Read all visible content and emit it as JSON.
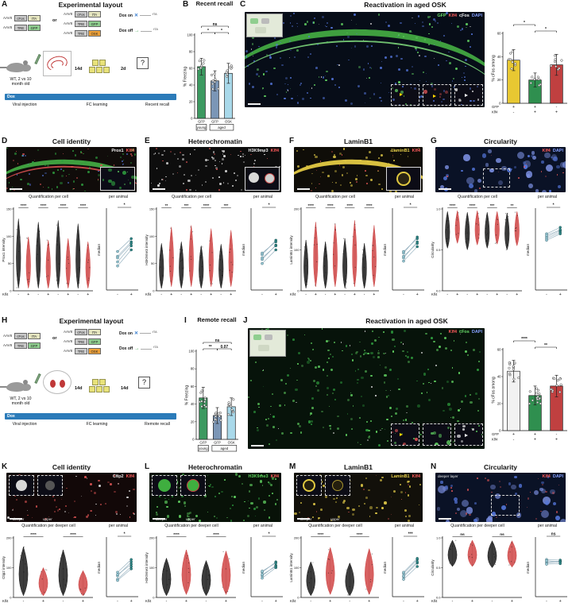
{
  "panelA": {
    "letter": "A",
    "title": "Experimental layout",
    "aav": "AAV8",
    "or": "or",
    "left": [
      {
        "b1": "cFos",
        "c1": "#c9c9c9",
        "b2": "tTA",
        "c2": "#e6e6c0"
      },
      {
        "b1": "TRE",
        "c1": "#c9c9c9",
        "b2": "GFP",
        "c2": "#8fce8f"
      }
    ],
    "mid": [
      {
        "b1": "cFos",
        "c1": "#c9c9c9",
        "b2": "tTA",
        "c2": "#e6e6c0"
      },
      {
        "b1": "TRE",
        "c1": "#c9c9c9",
        "b2": "GFP",
        "c2": "#8fce8f"
      },
      {
        "b1": "TRE",
        "c1": "#c9c9c9",
        "b2": "OSK",
        "c2": "#efa23a"
      }
    ],
    "dox_on": "Dox on",
    "dox_off": "Dox off",
    "tta": "tTA",
    "mouse1": "WT, 2 vs 10",
    "mouse2": "month old",
    "dox": "Dox",
    "i1": "14d",
    "i2": "2d",
    "q": "?",
    "step1": "Viral injection",
    "step2": "FC learning",
    "step3": "Recent recall"
  },
  "panelB": {
    "letter": "B",
    "title": "Recent recall",
    "chart": {
      "ylabel": "% Freezing",
      "ymax": 100,
      "ticks": [
        0,
        20,
        40,
        60,
        80,
        100
      ],
      "values": [
        62,
        45,
        54
      ],
      "errors": [
        10,
        12,
        12
      ],
      "dots": [
        7,
        8,
        8
      ],
      "colors": [
        "#3c9960",
        "#7b96b6",
        "#a9d9ea"
      ],
      "sig": [
        {
          "label": "ns",
          "from": 0,
          "to": 2,
          "row": 1
        },
        {
          "label": "*",
          "from": 0,
          "to": 1,
          "row": 0
        },
        {
          "label": "*",
          "from": 1,
          "to": 2,
          "row": 0
        }
      ],
      "xlabels": [
        "GFP",
        "GFP",
        "OSK"
      ],
      "groups": [
        {
          "label": "young",
          "from": 0,
          "to": 0
        },
        {
          "label": "aged",
          "from": 1,
          "to": 2
        }
      ]
    }
  },
  "panelC": {
    "letter": "C",
    "title": "Reactivation in aged OSK",
    "labels": [
      {
        "t": "GFP",
        "c": "#6ae06a"
      },
      {
        "t": "Klf4",
        "c": "#ff5c5c"
      },
      {
        "t": "cFos",
        "c": "#f0f0f0"
      },
      {
        "t": "DAPI",
        "c": "#86a0ff"
      }
    ],
    "chart": {
      "ylabel": "% cFos among",
      "ymax": 60,
      "ticks": [
        0,
        20,
        40,
        60
      ],
      "values": [
        37,
        20,
        33
      ],
      "errors": [
        9,
        6,
        9
      ],
      "dots": [
        8,
        8,
        8
      ],
      "colors": [
        "#e8c832",
        "#2f8f4f",
        "#c04040"
      ],
      "sig": [
        {
          "label": "*",
          "from": 0,
          "to": 1,
          "row": 1
        },
        {
          "label": "*",
          "from": 1,
          "to": 2,
          "row": 0
        }
      ],
      "xrows": [
        {
          "name": "GFP",
          "vals": [
            "+",
            "+",
            "-"
          ]
        },
        {
          "name": "Klf4",
          "vals": [
            "-",
            "+",
            "+"
          ]
        }
      ]
    }
  },
  "panelD": {
    "letter": "D",
    "title": "Cell identity",
    "labels": [
      {
        "t": "Prox1",
        "c": "#f0f0f0"
      },
      {
        "t": "Klf4",
        "c": "#ff5c5c"
      }
    ],
    "quant": "Quantification per cell",
    "per_animal": "per animal",
    "violin": {
      "ylabel": "Prox1 intensity",
      "ticks": [
        "0",
        "50",
        "100",
        "150"
      ],
      "sig": [
        "****",
        "****",
        "****",
        "****"
      ],
      "row_name": "Klf4",
      "row_vals": [
        "-",
        "+",
        "-",
        "+",
        "-",
        "+",
        "-",
        "+"
      ],
      "violins": [
        {
          "c": "#1a1a1a",
          "lo": 0.03,
          "hi": 0.88
        },
        {
          "c": "#d04545",
          "lo": 0.03,
          "hi": 0.66
        },
        {
          "c": "#1a1a1a",
          "lo": 0.03,
          "hi": 0.84
        },
        {
          "c": "#d04545",
          "lo": 0.03,
          "hi": 0.62
        },
        {
          "c": "#1a1a1a",
          "lo": 0.03,
          "hi": 0.86
        },
        {
          "c": "#d04545",
          "lo": 0.03,
          "hi": 0.64
        },
        {
          "c": "#1a1a1a",
          "lo": 0.03,
          "hi": 0.82
        },
        {
          "c": "#d04545",
          "lo": 0.03,
          "hi": 0.6
        }
      ]
    },
    "median": {
      "ylabel": "median",
      "sig": "*",
      "xvals": [
        "-",
        "+"
      ],
      "pairs": [
        [
          0.35,
          0.55
        ],
        [
          0.42,
          0.6
        ],
        [
          0.48,
          0.64
        ],
        [
          0.3,
          0.5
        ],
        [
          0.4,
          0.58
        ]
      ]
    }
  },
  "panelE": {
    "letter": "E",
    "title": "Heterochromatin",
    "labels": [
      {
        "t": "H3K9me3",
        "c": "#e8e8e8"
      },
      {
        "t": "Klf4",
        "c": "#ff5c5c"
      }
    ],
    "quant": "Quantification per cell",
    "per_animal": "per animal",
    "violin": {
      "ylabel": "H3K9me3 intensity",
      "ticks": [
        "0",
        "50",
        "100",
        "150"
      ],
      "sig": [
        "**",
        "***",
        "****",
        "***"
      ],
      "row_name": "Klf4",
      "row_vals": [
        "-",
        "+",
        "-",
        "+",
        "-",
        "+",
        "-",
        "+"
      ],
      "violins": [
        {
          "c": "#1a1a1a",
          "lo": 0.03,
          "hi": 0.58
        },
        {
          "c": "#d04545",
          "lo": 0.05,
          "hi": 0.78
        },
        {
          "c": "#1a1a1a",
          "lo": 0.03,
          "hi": 0.6
        },
        {
          "c": "#d04545",
          "lo": 0.05,
          "hi": 0.8
        },
        {
          "c": "#1a1a1a",
          "lo": 0.03,
          "hi": 0.55
        },
        {
          "c": "#d04545",
          "lo": 0.05,
          "hi": 0.76
        },
        {
          "c": "#1a1a1a",
          "lo": 0.03,
          "hi": 0.57
        },
        {
          "c": "#d04545",
          "lo": 0.05,
          "hi": 0.74
        }
      ]
    },
    "median": {
      "ylabel": "median",
      "sig": "*",
      "xvals": [
        "-",
        "+"
      ],
      "pairs": [
        [
          0.38,
          0.56
        ],
        [
          0.44,
          0.62
        ],
        [
          0.4,
          0.55
        ],
        [
          0.33,
          0.5
        ],
        [
          0.46,
          0.6
        ]
      ]
    }
  },
  "panelF": {
    "letter": "F",
    "title": "LaminB1",
    "labels": [
      {
        "t": "LaminB1",
        "c": "#e8d04a"
      },
      {
        "t": "Klf4",
        "c": "#ff5c5c"
      }
    ],
    "quant": "Quantification per cell",
    "per_animal": "per animal",
    "violin": {
      "ylabel": "LaminB1 intensity",
      "ticks": [
        "0",
        "100",
        "200"
      ],
      "sig": [
        "****",
        "****",
        "****",
        "****"
      ],
      "row_name": "Klf4",
      "row_vals": [
        "-",
        "+",
        "-",
        "+",
        "-",
        "+",
        "-",
        "+"
      ],
      "violins": [
        {
          "c": "#1a1a1a",
          "lo": 0.03,
          "hi": 0.62
        },
        {
          "c": "#d04545",
          "lo": 0.05,
          "hi": 0.84
        },
        {
          "c": "#1a1a1a",
          "lo": 0.03,
          "hi": 0.6
        },
        {
          "c": "#d04545",
          "lo": 0.05,
          "hi": 0.82
        },
        {
          "c": "#1a1a1a",
          "lo": 0.03,
          "hi": 0.64
        },
        {
          "c": "#d04545",
          "lo": 0.05,
          "hi": 0.86
        },
        {
          "c": "#1a1a1a",
          "lo": 0.03,
          "hi": 0.58
        },
        {
          "c": "#d04545",
          "lo": 0.05,
          "hi": 0.8
        }
      ]
    },
    "median": {
      "ylabel": "median",
      "sig": "*",
      "xvals": [
        "-",
        "+"
      ],
      "pairs": [
        [
          0.4,
          0.6
        ],
        [
          0.46,
          0.66
        ],
        [
          0.42,
          0.58
        ],
        [
          0.36,
          0.54
        ],
        [
          0.48,
          0.64
        ]
      ]
    }
  },
  "panelG": {
    "letter": "G",
    "title": "Circularity",
    "labels": [
      {
        "t": "Klf4",
        "c": "#ff5c5c"
      },
      {
        "t": "DAPI",
        "c": "#86a0ff"
      }
    ],
    "quant": "Quantification per cell",
    "per_animal": "per animal",
    "violin": {
      "ylabel": "Circularity",
      "ticks": [
        "0.0",
        "0.5",
        "1.0"
      ],
      "sig": [
        "****",
        "****",
        "***",
        "**"
      ],
      "row_name": "Klf4",
      "row_vals": [
        "-",
        "+",
        "-",
        "+",
        "-",
        "+",
        "-",
        "+"
      ],
      "violins": [
        {
          "c": "#1a1a1a",
          "lo": 0.52,
          "hi": 0.97
        },
        {
          "c": "#d04545",
          "lo": 0.58,
          "hi": 0.98
        },
        {
          "c": "#1a1a1a",
          "lo": 0.5,
          "hi": 0.96
        },
        {
          "c": "#d04545",
          "lo": 0.56,
          "hi": 0.98
        },
        {
          "c": "#1a1a1a",
          "lo": 0.52,
          "hi": 0.96
        },
        {
          "c": "#d04545",
          "lo": 0.57,
          "hi": 0.97
        },
        {
          "c": "#1a1a1a",
          "lo": 0.5,
          "hi": 0.95
        },
        {
          "c": "#d04545",
          "lo": 0.55,
          "hi": 0.97
        }
      ]
    },
    "median": {
      "ylabel": "median",
      "sig": "*",
      "xvals": [
        "-",
        "+"
      ],
      "pairs": [
        [
          0.66,
          0.74
        ],
        [
          0.7,
          0.78
        ],
        [
          0.64,
          0.72
        ],
        [
          0.68,
          0.75
        ],
        [
          0.62,
          0.7
        ]
      ]
    }
  },
  "panelH": {
    "letter": "H",
    "title": "Experimental layout",
    "aav": "AAV8",
    "or": "or",
    "left": [
      {
        "b1": "cFos",
        "c1": "#c9c9c9",
        "b2": "tTA",
        "c2": "#e6e6c0"
      },
      {
        "b1": "TRE",
        "c1": "#c9c9c9",
        "b2": "GFP",
        "c2": "#8fce8f"
      }
    ],
    "mid": [
      {
        "b1": "cFos",
        "c1": "#c9c9c9",
        "b2": "tTA",
        "c2": "#e6e6c0"
      },
      {
        "b1": "TRE",
        "c1": "#c9c9c9",
        "b2": "GFP",
        "c2": "#8fce8f"
      },
      {
        "b1": "TRE",
        "c1": "#c9c9c9",
        "b2": "OSK",
        "c2": "#efa23a"
      }
    ],
    "dox_on": "Dox on",
    "dox_off": "Dox off",
    "tta": "tTA",
    "mouse1": "WT, 2 vs 10",
    "mouse2": "month old",
    "dox": "Dox",
    "i1": "14d",
    "i2": "14d",
    "q": "?",
    "step1": "Viral injection",
    "step2": "FC learning",
    "step3": "Remote recall"
  },
  "panelI": {
    "letter": "I",
    "title": "Remote recall",
    "chart": {
      "ylabel": "% Freezing",
      "ymax": 100,
      "ticks": [
        0,
        20,
        40,
        60,
        80,
        100
      ],
      "values": [
        47,
        27,
        37
      ],
      "errors": [
        12,
        9,
        10
      ],
      "dots": [
        10,
        10,
        9
      ],
      "colors": [
        "#3c9960",
        "#7b96b6",
        "#a9d9ea"
      ],
      "sig": [
        {
          "label": "ns",
          "from": 0,
          "to": 2,
          "row": 1
        },
        {
          "label": "**",
          "from": 0,
          "to": 1,
          "row": 0
        },
        {
          "label": "0.07",
          "from": 1,
          "to": 2,
          "row": 0
        }
      ],
      "xlabels": [
        "GFP",
        "GFP",
        "OSK"
      ],
      "groups": [
        {
          "label": "young",
          "from": 0,
          "to": 0
        },
        {
          "label": "aged",
          "from": 1,
          "to": 2
        }
      ]
    }
  },
  "panelJ": {
    "letter": "J",
    "title": "Reactivation in aged OSK",
    "labels": [
      {
        "t": "Klf4",
        "c": "#ff5c5c"
      },
      {
        "t": "cFos",
        "c": "#6ae06a"
      },
      {
        "t": "DAPI",
        "c": "#86a0ff"
      }
    ],
    "chart": {
      "ylabel": "% cFos among",
      "ymax": 60,
      "ticks": [
        0,
        20,
        40,
        60
      ],
      "values": [
        44,
        26,
        33
      ],
      "errors": [
        8,
        7,
        8
      ],
      "dots": [
        14,
        14,
        12
      ],
      "colors": [
        "#f2f2f2",
        "#2f8f4f",
        "#c04040"
      ],
      "sig": [
        {
          "label": "****",
          "from": 0,
          "to": 1,
          "row": 1
        },
        {
          "label": "**",
          "from": 1,
          "to": 2,
          "row": 0
        }
      ],
      "xrows": [
        {
          "name": "GFP",
          "vals": [
            "+",
            "+",
            "-"
          ]
        },
        {
          "name": "Klf4",
          "vals": [
            "-",
            "+",
            "+"
          ]
        }
      ]
    }
  },
  "panelK": {
    "letter": "K",
    "title": "Cell identity",
    "labels": [
      {
        "t": "Ctip2",
        "c": "#e0e0e0"
      },
      {
        "t": "Klf4",
        "c": "#ff5c5c"
      }
    ],
    "caps": [
      "deeper",
      "upper"
    ],
    "quant": "Quantification per deeper cell",
    "per_animal": "per animal",
    "violin": {
      "ylabel": "Ctip2 intensity",
      "ticks": [
        "0",
        "100",
        "200"
      ],
      "sig": [
        "****",
        "****"
      ],
      "row_name": "Klf4",
      "row_vals": [
        "-",
        "+",
        "-",
        "+"
      ],
      "violins": [
        {
          "c": "#1a1a1a",
          "lo": 0.03,
          "hi": 0.85
        },
        {
          "c": "#d04545",
          "lo": 0.03,
          "hi": 0.5
        },
        {
          "c": "#1a1a1a",
          "lo": 0.03,
          "hi": 0.8
        },
        {
          "c": "#d04545",
          "lo": 0.03,
          "hi": 0.45
        }
      ]
    },
    "median": {
      "ylabel": "median",
      "sig": "*",
      "xvals": [
        "-",
        "+"
      ],
      "pairs": [
        [
          0.3,
          0.52
        ],
        [
          0.36,
          0.6
        ],
        [
          0.42,
          0.64
        ],
        [
          0.28,
          0.48
        ],
        [
          0.38,
          0.56
        ]
      ]
    }
  },
  "panelL": {
    "letter": "L",
    "title": "Heterochromatin",
    "labels": [
      {
        "t": "H3K9me3",
        "c": "#5ad05a"
      },
      {
        "t": "Klf4",
        "c": "#ff5c5c"
      }
    ],
    "caps": [
      "deeper",
      "upper"
    ],
    "quant": "Quantification per deeper cell",
    "per_animal": "per animal",
    "violin": {
      "ylabel": "H3K9me3 intensity",
      "ticks": [
        "0",
        "100",
        "200"
      ],
      "sig": [
        "****",
        "****"
      ],
      "row_name": "Klf4",
      "row_vals": [
        "-",
        "+",
        "-",
        "+"
      ],
      "violins": [
        {
          "c": "#1a1a1a",
          "lo": 0.03,
          "hi": 0.66
        },
        {
          "c": "#d04545",
          "lo": 0.05,
          "hi": 0.8
        },
        {
          "c": "#1a1a1a",
          "lo": 0.03,
          "hi": 0.62
        },
        {
          "c": "#d04545",
          "lo": 0.05,
          "hi": 0.78
        }
      ]
    },
    "median": {
      "ylabel": "median",
      "sig": "*",
      "xvals": [
        "-",
        "+"
      ],
      "pairs": [
        [
          0.36,
          0.54
        ],
        [
          0.42,
          0.6
        ],
        [
          0.38,
          0.52
        ],
        [
          0.32,
          0.5
        ],
        [
          0.44,
          0.58
        ]
      ]
    }
  },
  "panelM": {
    "letter": "M",
    "title": "LaminB1",
    "labels": [
      {
        "t": "LaminB1",
        "c": "#e8d04a"
      },
      {
        "t": "Klf4",
        "c": "#ff5c5c"
      }
    ],
    "caps": [
      "deeper",
      "upper"
    ],
    "quant": "Quantification per deeper cell",
    "per_animal": "per animal",
    "violin": {
      "ylabel": "LaminB1 intensity",
      "ticks": [
        "0",
        "100",
        "200"
      ],
      "sig": [
        "****",
        "****"
      ],
      "row_name": "Klf4",
      "row_vals": [
        "-",
        "+",
        "-",
        "+"
      ],
      "violins": [
        {
          "c": "#1a1a1a",
          "lo": 0.03,
          "hi": 0.6
        },
        {
          "c": "#d04545",
          "lo": 0.05,
          "hi": 0.84
        },
        {
          "c": "#1a1a1a",
          "lo": 0.03,
          "hi": 0.58
        },
        {
          "c": "#d04545",
          "lo": 0.05,
          "hi": 0.82
        }
      ]
    },
    "median": {
      "ylabel": "median",
      "sig": "***",
      "xvals": [
        "-",
        "+"
      ],
      "pairs": [
        [
          0.34,
          0.58
        ],
        [
          0.4,
          0.64
        ],
        [
          0.36,
          0.6
        ],
        [
          0.3,
          0.52
        ],
        [
          0.42,
          0.66
        ]
      ]
    }
  },
  "panelN": {
    "letter": "N",
    "title": "Circularity",
    "deep_label": "deeper layer",
    "labels": [
      {
        "t": "Klf4",
        "c": "#ff5c5c"
      },
      {
        "t": "DAPI",
        "c": "#86a0ff"
      }
    ],
    "quant": "Quantification per deeper cell",
    "per_animal": "per animal",
    "violin": {
      "ylabel": "Circularity",
      "ticks": [
        "0.0",
        "0.5",
        "1.0"
      ],
      "sig": [
        "ns",
        "ns"
      ],
      "row_name": "Klf4",
      "row_vals": [
        "-",
        "+",
        "-",
        "+"
      ],
      "violins": [
        {
          "c": "#1a1a1a",
          "lo": 0.52,
          "hi": 0.96
        },
        {
          "c": "#d04545",
          "lo": 0.52,
          "hi": 0.96
        },
        {
          "c": "#1a1a1a",
          "lo": 0.5,
          "hi": 0.95
        },
        {
          "c": "#d04545",
          "lo": 0.51,
          "hi": 0.95
        }
      ]
    },
    "median": {
      "ylabel": "median",
      "sig": "ns",
      "xvals": [
        "-",
        "+"
      ],
      "pairs": [
        [
          0.6,
          0.61
        ],
        [
          0.64,
          0.63
        ],
        [
          0.58,
          0.6
        ],
        [
          0.62,
          0.6
        ],
        [
          0.56,
          0.57
        ]
      ]
    }
  }
}
